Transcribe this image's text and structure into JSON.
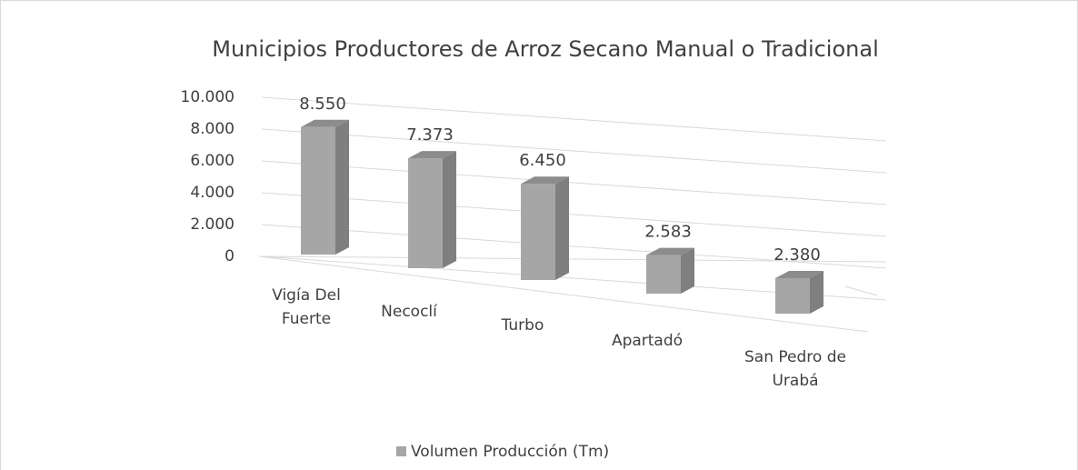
{
  "chart_data": {
    "type": "bar3d",
    "title": "Municipios Productores de Arroz Secano Manual o Tradicional",
    "categories": [
      "Vigía Del Fuerte",
      "Necoclí",
      "Turbo",
      "Apartadó",
      "San Pedro de Urabá"
    ],
    "series": [
      {
        "name": "Volumen Producción (Tm)",
        "color": "#a6a6a6",
        "values": [
          8550,
          7373,
          6450,
          2583,
          2380
        ],
        "value_labels": [
          "8.550",
          "7.373",
          "6.450",
          "2.583",
          "2.380"
        ]
      }
    ],
    "ylim": [
      0,
      10000
    ],
    "yticks": [
      0,
      {
        "value": 2000,
        "label": "2.000"
      },
      {
        "value": 4000,
        "label": "4.000"
      },
      {
        "value": 6000,
        "label": "6.000"
      },
      {
        "value": 8000,
        "label": "8.000"
      },
      {
        "value": 10000,
        "label": "10.000"
      }
    ],
    "grid": true,
    "legend": "bottom"
  }
}
